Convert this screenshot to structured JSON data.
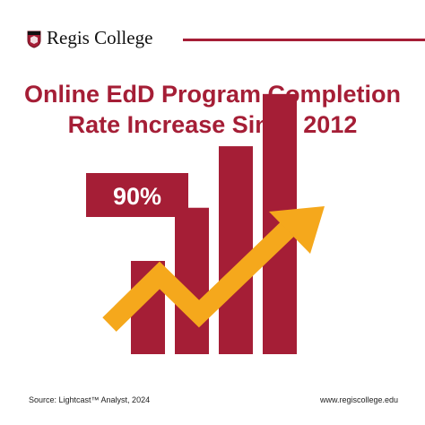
{
  "brand": {
    "name": "Regis College",
    "accent_color": "#a51e36",
    "arrow_color": "#f5a81c",
    "logo_icon": "regis-shield-icon"
  },
  "title_lines": [
    "Online EdD Program Completion",
    "Rate Increase Since 2012"
  ],
  "chart_data": {
    "type": "bar",
    "title": "Online EdD Program Completion Rate Increase Since 2012",
    "categories": [
      "",
      "",
      "",
      ""
    ],
    "values": [
      1,
      1.57,
      2.23,
      2.79
    ],
    "value_unit": "relative bar height (first bar = 1), no axis printed",
    "annotation": "90%",
    "trend": "upward arrow",
    "grid": false,
    "legend": "none"
  },
  "footer": {
    "source": "Source: Lightcast™ Analyst, 2024",
    "url": "www.regiscollege.edu"
  }
}
